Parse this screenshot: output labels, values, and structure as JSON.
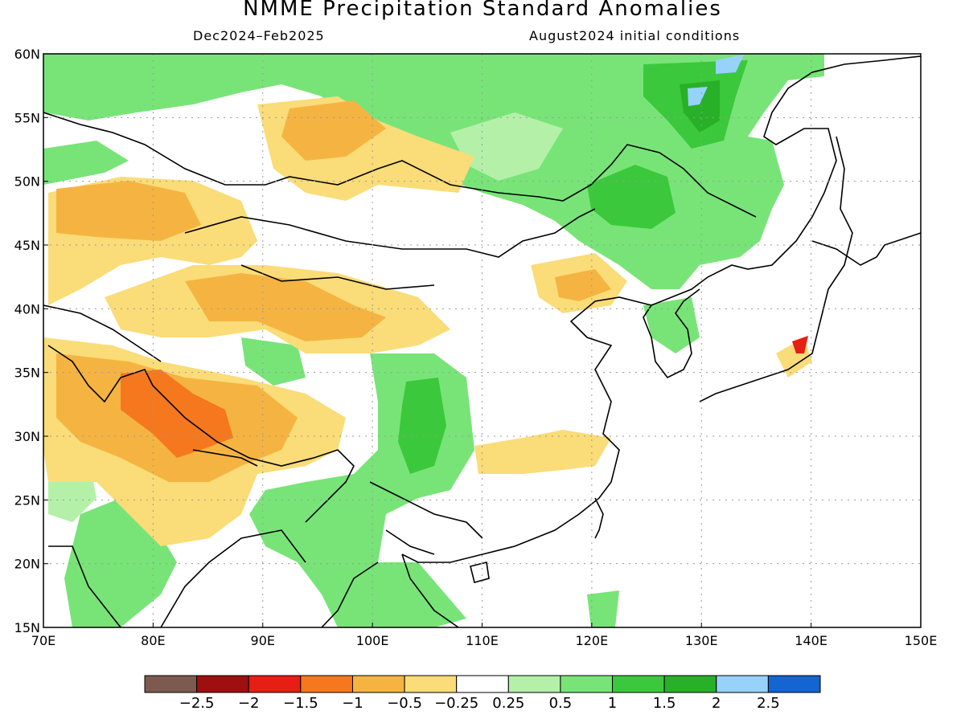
{
  "title": "NMME Precipitation Standard Anomalies",
  "season": "Dec2024–Feb2025",
  "init": "August2024 initial conditions",
  "map": {
    "lon_range": [
      70,
      150
    ],
    "lat_range": [
      15,
      60
    ],
    "lon_labels": [
      "70E",
      "80E",
      "90E",
      "100E",
      "110E",
      "120E",
      "130E",
      "140E",
      "150E"
    ],
    "lat_labels": [
      "15N",
      "20N",
      "25N",
      "30N",
      "35N",
      "40N",
      "45N",
      "50N",
      "55N",
      "60N"
    ],
    "colors": {
      "green_light": "#b4f0a8",
      "green": "#78e478",
      "green_mid": "#3cc83c",
      "green_dark": "#28b028",
      "blue_light": "#96d2fa",
      "tan": "#fadc78",
      "orange": "#f5b441",
      "orange_dark": "#f5781e",
      "red": "#e61e14"
    }
  },
  "colorbar": {
    "colors": [
      "#7d5a50",
      "#a00f0f",
      "#e61e14",
      "#f5781e",
      "#f5b441",
      "#fadc78",
      "#ffffff",
      "#b4f0a8",
      "#78e478",
      "#3cc83c",
      "#28b028",
      "#96d2fa",
      "#1464d2"
    ],
    "labels": [
      "−2.5",
      "−2",
      "−1.5",
      "−1",
      "−0.5",
      "−0.25",
      "0.25",
      "0.5",
      "1",
      "1.5",
      "2",
      "2.5"
    ]
  }
}
